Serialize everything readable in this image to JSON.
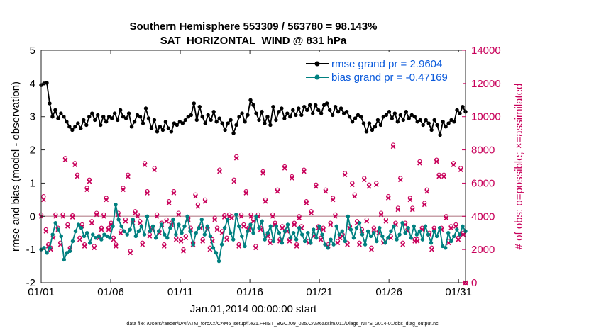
{
  "chart_data": {
    "type": "line",
    "title": "Southern Hemisphere 553309 / 563780 = 98.143%",
    "subtitle": "SAT_HORIZONTAL_WIND @ 831 hPa",
    "xlabel": "Jan.01,2014 00:00:00 start",
    "ylabel": "rmse and bias (model - observation)",
    "ylabel_right": "# of obs: o=possible; ×=assimilated",
    "xlim": [
      1,
      31.5
    ],
    "ylim": [
      -2,
      5
    ],
    "ylim_right": [
      0,
      14000
    ],
    "x_ticks": [
      {
        "value": 1,
        "label": "01/01"
      },
      {
        "value": 6,
        "label": "01/06"
      },
      {
        "value": 11,
        "label": "01/11"
      },
      {
        "value": 16,
        "label": "01/16"
      },
      {
        "value": 21,
        "label": "01/21"
      },
      {
        "value": 26,
        "label": "01/26"
      },
      {
        "value": 31,
        "label": "01/31"
      }
    ],
    "y_ticks": [
      "-2",
      "-1",
      "0",
      "1",
      "2",
      "3",
      "4",
      "5"
    ],
    "y_ticks_right": [
      "0",
      "2000",
      "4000",
      "6000",
      "8000",
      "10000",
      "12000",
      "14000"
    ],
    "legend_position": "top-right",
    "series": [
      {
        "name": "rmse grand pr = 2.9604",
        "color": "#000000",
        "values": [
          3.95,
          4.0,
          4.02,
          3.4,
          3.0,
          3.2,
          2.95,
          3.1,
          3.0,
          2.85,
          2.7,
          2.6,
          2.7,
          2.8,
          2.65,
          2.9,
          2.75,
          3.0,
          3.1,
          2.9,
          3.05,
          2.75,
          3.0,
          2.85,
          3.0,
          2.95,
          3.1,
          2.9,
          3.2,
          3.0,
          2.95,
          3.1,
          2.7,
          2.85,
          3.05,
          3.0,
          2.8,
          3.25,
          2.95,
          2.65,
          2.9,
          2.55,
          2.7,
          2.6,
          2.85,
          2.65,
          2.55,
          2.8,
          2.75,
          2.85,
          2.8,
          2.9,
          3.0,
          3.05,
          3.4,
          2.9,
          3.3,
          3.0,
          2.8,
          3.05,
          2.9,
          3.15,
          2.85,
          2.95,
          2.8,
          2.6,
          2.8,
          2.9,
          2.5,
          2.75,
          3.0,
          3.1,
          2.85,
          3.05,
          3.5,
          3.35,
          3.1,
          2.9,
          3.15,
          2.8,
          3.0,
          2.75,
          3.3,
          2.9,
          3.15,
          3.25,
          2.95,
          3.1,
          3.0,
          3.2,
          3.05,
          3.25,
          3.05,
          3.3,
          3.2,
          3.35,
          3.1,
          3.35,
          3.2,
          3.1,
          3.35,
          3.4,
          3.2,
          3.05,
          3.3,
          3.15,
          3.25,
          3.1,
          3.15,
          3.0,
          2.85,
          2.95,
          3.05,
          3.0,
          2.8,
          2.55,
          2.8,
          2.6,
          2.7,
          2.9,
          2.75,
          3.0,
          3.05,
          3.15,
          2.95,
          3.1,
          2.85,
          3.05,
          2.9,
          3.15,
          2.95,
          3.05,
          3.0,
          2.85,
          2.9,
          2.75,
          2.9,
          2.8,
          2.6,
          2.9,
          2.75,
          2.45,
          2.85,
          2.7,
          2.8,
          2.9,
          2.85,
          3.2,
          3.1,
          3.3,
          3.15
        ]
      },
      {
        "name": "bias grand pr = -0.47169",
        "color": "#008080",
        "values": [
          -1.0,
          -0.95,
          -1.1,
          -0.95,
          -0.55,
          -0.2,
          -0.4,
          -0.6,
          -1.3,
          -1.1,
          -1.05,
          -0.75,
          -0.45,
          -0.25,
          -0.35,
          -0.6,
          -0.5,
          -0.8,
          -0.55,
          -0.65,
          -0.6,
          -0.7,
          -0.55,
          -0.6,
          -0.65,
          -0.3,
          0.35,
          -0.1,
          -0.3,
          -0.45,
          -0.55,
          -0.4,
          -0.1,
          -0.6,
          -0.45,
          -0.3,
          -0.55,
          0.0,
          -0.45,
          -0.3,
          -0.65,
          -0.45,
          -0.25,
          -0.55,
          -0.65,
          -0.35,
          -0.1,
          -0.55,
          -0.25,
          -0.5,
          -0.3,
          0.0,
          -0.45,
          -0.85,
          -0.5,
          -0.35,
          -0.1,
          -0.55,
          -0.3,
          -0.6,
          -0.95,
          -1.1,
          -1.35,
          -0.85,
          -0.35,
          -0.1,
          -0.5,
          -0.7,
          0.05,
          -0.3,
          -0.6,
          -0.9,
          -0.45,
          -0.25,
          -0.5,
          0.0,
          -0.35,
          -0.15,
          -0.7,
          -0.5,
          -0.3,
          -0.75,
          -0.3,
          -0.5,
          -0.8,
          -0.45,
          -0.25,
          -0.65,
          -0.5,
          -0.7,
          -0.35,
          -0.55,
          -0.75,
          -0.5,
          -0.8,
          -0.4,
          -0.65,
          -0.3,
          -0.55,
          -0.85,
          -0.95,
          -0.7,
          -0.85,
          -0.3,
          -0.55,
          -0.45,
          -0.75,
          0.0,
          -0.4,
          -0.65,
          -0.35,
          -0.2,
          -0.55,
          -0.85,
          -0.45,
          -0.6,
          -0.5,
          -0.75,
          -0.35,
          -0.6,
          -0.8,
          -0.65,
          -0.45,
          -0.3,
          -0.7,
          -0.55,
          -0.2,
          -0.5,
          -0.35,
          -0.65,
          -0.3,
          -0.55,
          -0.45,
          -0.7,
          -0.3,
          -0.55,
          -0.8,
          -0.45,
          -0.6,
          -0.35,
          -0.9,
          -0.95,
          -0.5,
          -0.75,
          -0.6,
          -0.4,
          -0.55,
          -0.3,
          -0.45
        ]
      },
      {
        "name": "obs possible",
        "color": "#c8005a",
        "marker": "o",
        "values": [
          4100,
          5200,
          3200,
          2300,
          2100,
          2800,
          4100,
          3300,
          2400,
          4100,
          7500,
          3500,
          2100,
          4050,
          7200,
          6500,
          2700,
          3500,
          2300,
          5700,
          6200,
          3700,
          2200,
          4200,
          2800,
          3300,
          4100,
          5100,
          3300,
          3600,
          2700,
          2300,
          4200,
          3100,
          5700,
          3800,
          6500,
          1900,
          3700,
          4300,
          4100,
          3700,
          2400,
          7200,
          5500,
          2900,
          3300,
          6900,
          4100,
          3100,
          3600,
          2300,
          3800,
          4900,
          3600,
          5500,
          2700,
          4200,
          2600,
          2000,
          2800,
          3900,
          3300,
          2400,
          5300,
          4700,
          3400,
          2600,
          5000,
          3300,
          2100,
          2600,
          3900,
          3300,
          6800,
          3100,
          4050,
          2700,
          4100,
          4000,
          6200,
          7600,
          2300,
          4100,
          3500,
          5500,
          3300,
          4100,
          3800,
          2200,
          4100,
          3300,
          6700,
          5000,
          2900,
          2500,
          4100,
          3600,
          5600,
          2600,
          3400,
          7000,
          3200,
          2600,
          6400,
          3600,
          2300,
          4000,
          3400,
          6800,
          4900,
          2500,
          4300,
          2900,
          5900,
          3400,
          2700,
          3300,
          5600,
          2300,
          3600,
          5100,
          4100,
          2500,
          2800,
          2900,
          6600,
          2400,
          3400,
          6000,
          5300,
          3700,
          2400,
          3200,
          6300,
          3800,
          5900,
          2100,
          3300,
          6000,
          3100,
          4200,
          2500,
          3800,
          5200,
          2800,
          8300,
          3600,
          4500,
          6300,
          2400,
          3600,
          3200,
          5100,
          4500,
          2600,
          2600,
          7300,
          3300,
          4800,
          5600,
          3000,
          2100,
          3300,
          7400,
          6500,
          3300,
          6500,
          4000,
          2500,
          3400,
          7200,
          3500,
          2700,
          6900,
          3000,
          0
        ]
      },
      {
        "name": "obs assimilated",
        "color": "#c8005a",
        "marker": "x",
        "values": [
          4000,
          5000,
          3100,
          2200,
          2000,
          2700,
          4000,
          3200,
          2300,
          4000,
          7400,
          3400,
          2000,
          3950,
          7100,
          6400,
          2600,
          3400,
          2200,
          5600,
          6100,
          3600,
          2100,
          4100,
          2700,
          3200,
          4000,
          5000,
          3200,
          3500,
          2600,
          2200,
          4100,
          3000,
          5600,
          3700,
          6400,
          1800,
          3600,
          4200,
          4000,
          3600,
          2300,
          7100,
          5400,
          2800,
          3200,
          6800,
          4000,
          3000,
          3500,
          2200,
          3700,
          4800,
          3500,
          5400,
          2600,
          4100,
          2500,
          1900,
          2700,
          3800,
          3200,
          2300,
          5200,
          4600,
          3300,
          2500,
          4900,
          3200,
          2000,
          2500,
          3800,
          3200,
          6700,
          3000,
          3950,
          2600,
          4000,
          3900,
          6100,
          7500,
          2200,
          4000,
          3400,
          5400,
          3200,
          4000,
          3700,
          2100,
          4000,
          3200,
          6600,
          4900,
          2800,
          2400,
          4000,
          3500,
          5500,
          2500,
          3300,
          6900,
          3100,
          2500,
          6300,
          3500,
          2200,
          3900,
          3300,
          6700,
          4800,
          2400,
          4200,
          2800,
          5800,
          3300,
          2600,
          3200,
          5500,
          2200,
          3500,
          5000,
          4000,
          2400,
          2700,
          2800,
          6500,
          2300,
          3300,
          5900,
          5200,
          3600,
          2300,
          3100,
          6200,
          3700,
          5800,
          2000,
          3200,
          5900,
          3000,
          4100,
          2400,
          3700,
          5100,
          2700,
          8200,
          3500,
          4400,
          6200,
          2300,
          3500,
          3100,
          5000,
          4400,
          2500,
          2500,
          7200,
          3200,
          4700,
          5500,
          2900,
          2000,
          3200,
          7300,
          6400,
          3200,
          6400,
          3900,
          2400,
          3300,
          7100,
          3400,
          2600,
          6800,
          2900,
          0
        ]
      }
    ],
    "legend": [
      "rmse grand pr = 2.9604",
      "bias grand pr = -0.47169"
    ]
  },
  "footnote": "data file: /Users/raeder/DAI/ATM_forcXX/CAM6_setup/f.e21.FHIST_BGC.f09_025.CAM6assim.011/Diags_NTrS_2014-01/obs_diag_output.nc"
}
